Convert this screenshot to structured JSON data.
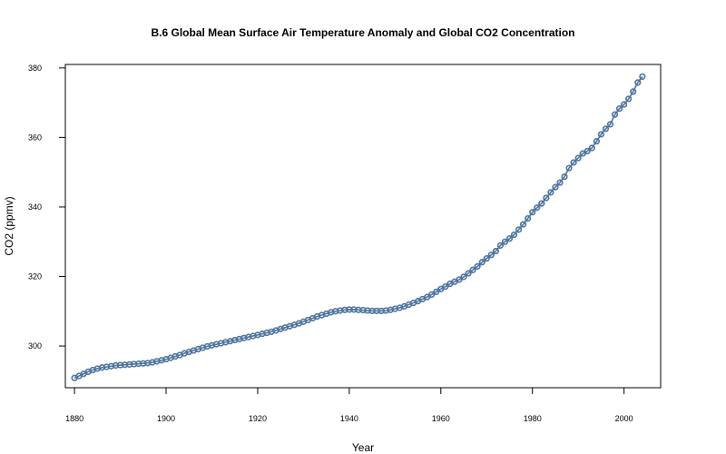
{
  "chart_data": {
    "type": "line",
    "title": "B.6  Global Mean Surface Air Temperature Anomaly and Global CO2 Concentration",
    "xlabel": "Year",
    "ylabel": "CO2 (ppmv)",
    "xlim": [
      1878,
      2008
    ],
    "ylim": [
      288,
      381
    ],
    "x_ticks": [
      1880,
      1900,
      1920,
      1940,
      1960,
      1980,
      2000
    ],
    "y_ticks": [
      300,
      320,
      340,
      360,
      380
    ],
    "grid": false,
    "legend": "none",
    "series_color": "#4f79a6",
    "outline_color": "#1f2f3f",
    "x": [
      1880,
      1881,
      1882,
      1883,
      1884,
      1885,
      1886,
      1887,
      1888,
      1889,
      1890,
      1891,
      1892,
      1893,
      1894,
      1895,
      1896,
      1897,
      1898,
      1899,
      1900,
      1901,
      1902,
      1903,
      1904,
      1905,
      1906,
      1907,
      1908,
      1909,
      1910,
      1911,
      1912,
      1913,
      1914,
      1915,
      1916,
      1917,
      1918,
      1919,
      1920,
      1921,
      1922,
      1923,
      1924,
      1925,
      1926,
      1927,
      1928,
      1929,
      1930,
      1931,
      1932,
      1933,
      1934,
      1935,
      1936,
      1937,
      1938,
      1939,
      1940,
      1941,
      1942,
      1943,
      1944,
      1945,
      1946,
      1947,
      1948,
      1949,
      1950,
      1951,
      1952,
      1953,
      1954,
      1955,
      1956,
      1957,
      1958,
      1959,
      1960,
      1961,
      1962,
      1963,
      1964,
      1965,
      1966,
      1967,
      1968,
      1969,
      1970,
      1971,
      1972,
      1973,
      1974,
      1975,
      1976,
      1977,
      1978,
      1979,
      1980,
      1981,
      1982,
      1983,
      1984,
      1985,
      1986,
      1987,
      1988,
      1989,
      1990,
      1991,
      1992,
      1993,
      1994,
      1995,
      1996,
      1997,
      1998,
      1999,
      2000,
      2001,
      2002,
      2003,
      2004
    ],
    "values": [
      290.8,
      291.4,
      292.0,
      292.6,
      293.1,
      293.5,
      293.8,
      294.0,
      294.2,
      294.4,
      294.5,
      294.6,
      294.7,
      294.8,
      294.9,
      295.0,
      295.1,
      295.3,
      295.6,
      295.9,
      296.2,
      296.6,
      297.0,
      297.4,
      297.9,
      298.3,
      298.7,
      299.1,
      299.5,
      299.9,
      300.2,
      300.5,
      300.8,
      301.1,
      301.4,
      301.7,
      302.0,
      302.3,
      302.6,
      302.9,
      303.2,
      303.5,
      303.8,
      304.1,
      304.5,
      304.9,
      305.3,
      305.7,
      306.1,
      306.5,
      307.0,
      307.5,
      308.0,
      308.5,
      308.9,
      309.3,
      309.7,
      310.0,
      310.2,
      310.4,
      310.5,
      310.5,
      310.4,
      310.3,
      310.2,
      310.1,
      310.1,
      310.1,
      310.2,
      310.4,
      310.7,
      311.0,
      311.4,
      311.9,
      312.4,
      312.9,
      313.5,
      314.1,
      314.8,
      315.6,
      316.4,
      317.1,
      317.9,
      318.5,
      319.1,
      319.9,
      320.9,
      321.9,
      322.9,
      324.1,
      325.2,
      326.2,
      327.3,
      328.9,
      330.0,
      330.9,
      332.0,
      333.5,
      335.0,
      336.7,
      338.5,
      339.8,
      341.0,
      342.6,
      344.2,
      345.7,
      347.0,
      348.7,
      351.2,
      352.8,
      354.1,
      355.4,
      356.1,
      357.0,
      358.9,
      360.9,
      362.5,
      363.8,
      366.6,
      368.3,
      369.5,
      371.1,
      373.2,
      375.8,
      377.5
    ]
  }
}
